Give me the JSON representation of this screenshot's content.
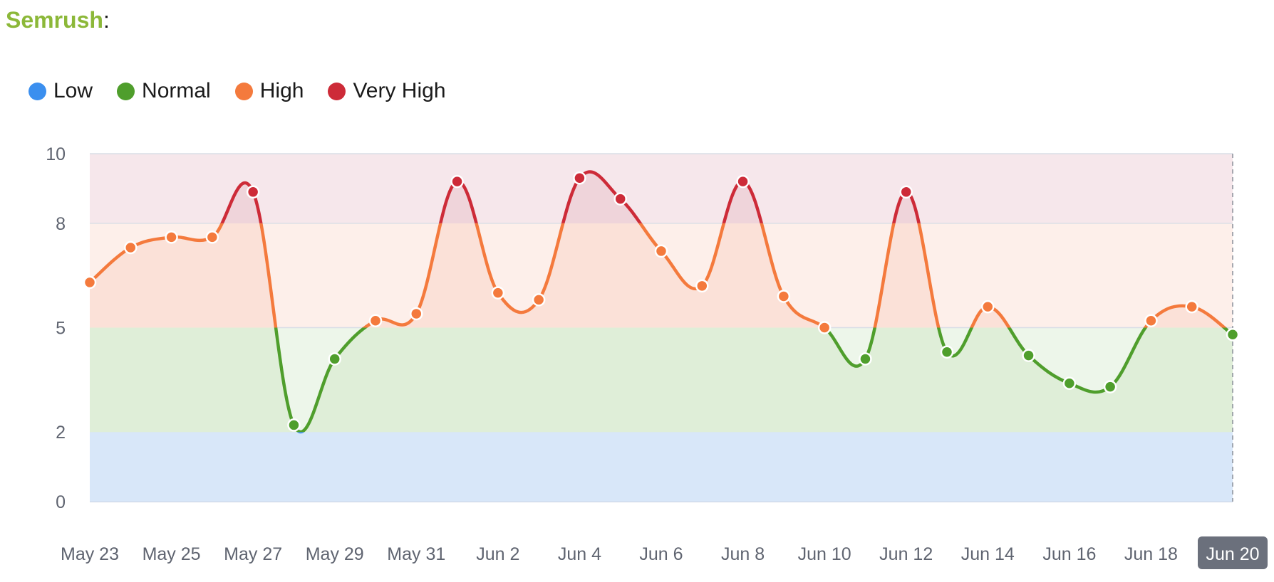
{
  "header": {
    "brand": "Semrush",
    "suffix": ":"
  },
  "chart_data": {
    "type": "line",
    "title": "",
    "xlabel": "",
    "ylabel": "",
    "ylim": [
      0,
      10
    ],
    "yticks": [
      0,
      2,
      5,
      8,
      10
    ],
    "grid": true,
    "legend_position": "top-left",
    "x": [
      "May 23",
      "May 24",
      "May 25",
      "May 26",
      "May 27",
      "May 28",
      "May 29",
      "May 30",
      "May 31",
      "Jun 1",
      "Jun 2",
      "Jun 3",
      "Jun 4",
      "Jun 5",
      "Jun 6",
      "Jun 7",
      "Jun 8",
      "Jun 9",
      "Jun 10",
      "Jun 11",
      "Jun 12",
      "Jun 13",
      "Jun 14",
      "Jun 15",
      "Jun 16",
      "Jun 17",
      "Jun 18",
      "Jun 19",
      "Jun 20"
    ],
    "xtick_labels": [
      "May 23",
      "May 25",
      "May 27",
      "May 29",
      "May 31",
      "Jun 2",
      "Jun 4",
      "Jun 6",
      "Jun 8",
      "Jun 10",
      "Jun 12",
      "Jun 14",
      "Jun 16",
      "Jun 18",
      "Jun 20"
    ],
    "highlighted_x": "Jun 20",
    "values": [
      6.3,
      7.3,
      7.6,
      7.6,
      8.9,
      2.2,
      4.1,
      5.2,
      5.4,
      9.2,
      6.0,
      5.8,
      9.3,
      8.7,
      7.2,
      6.2,
      9.2,
      5.9,
      5.0,
      4.1,
      8.9,
      4.3,
      5.6,
      4.2,
      3.4,
      3.3,
      5.2,
      5.6,
      4.8
    ],
    "series": [
      {
        "name": "Low",
        "range": [
          0,
          2
        ],
        "color": "#3b8fef",
        "band_color": "#d8e7f9"
      },
      {
        "name": "Normal",
        "range": [
          2,
          5
        ],
        "color": "#4f9e2c",
        "band_color": "#dfeed8"
      },
      {
        "name": "High",
        "range": [
          5,
          8
        ],
        "color": "#f47a3d",
        "band_color": "#fbe1d8"
      },
      {
        "name": "Very High",
        "range": [
          8,
          10
        ],
        "color": "#cd2b38",
        "band_color": "#efd4da"
      }
    ]
  }
}
